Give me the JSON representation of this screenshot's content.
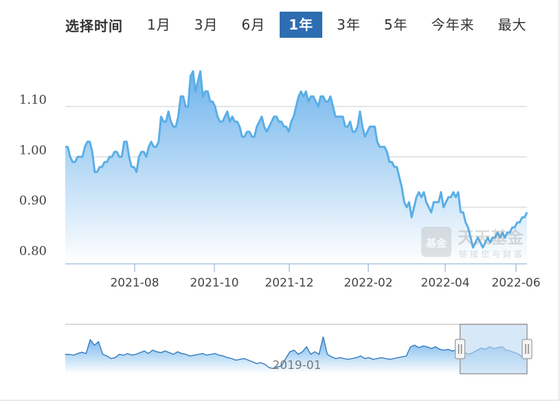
{
  "range_selector": {
    "title": "选择时间",
    "options": [
      "1月",
      "3月",
      "6月",
      "1年",
      "3年",
      "5年",
      "今年来",
      "最大"
    ],
    "active_index": 3
  },
  "watermark": {
    "logo_text": "基金",
    "name": "天天基金",
    "slogan": "链接您与财富"
  },
  "colors": {
    "line": "#5aaee6",
    "fill_top": "#7bbcef",
    "fill_bottom": "#ffffff",
    "active_tab": "#2e6db1",
    "grid": "#d9dde3"
  },
  "chart_data": {
    "type": "area",
    "title": "",
    "xlabel": "",
    "ylabel": "",
    "ylim": [
      0.78,
      1.19
    ],
    "yticks": [
      "0.80",
      "0.90",
      "1.00",
      "1.10"
    ],
    "xticks": [
      "2021-08",
      "2021-10",
      "2021-12",
      "2022-02",
      "2022-04",
      "2022-06"
    ],
    "grid": true,
    "series": [
      {
        "values": [
          1.02,
          1.02,
          1.0,
          0.99,
          0.99,
          1.0,
          1.0,
          1.0,
          1.02,
          1.03,
          1.03,
          1.01,
          0.97,
          0.97,
          0.98,
          0.98,
          0.99,
          0.99,
          1.0,
          1.0,
          1.01,
          1.01,
          1.0,
          1.0,
          1.03,
          1.03,
          1.0,
          0.98,
          0.98,
          0.97,
          1.0,
          1.01,
          1.01,
          1.0,
          1.02,
          1.03,
          1.02,
          1.02,
          1.03,
          1.08,
          1.07,
          1.07,
          1.09,
          1.07,
          1.06,
          1.06,
          1.08,
          1.12,
          1.12,
          1.1,
          1.1,
          1.16,
          1.17,
          1.13,
          1.15,
          1.17,
          1.12,
          1.13,
          1.13,
          1.11,
          1.11,
          1.1,
          1.08,
          1.07,
          1.07,
          1.08,
          1.09,
          1.07,
          1.08,
          1.07,
          1.07,
          1.06,
          1.04,
          1.04,
          1.05,
          1.05,
          1.04,
          1.04,
          1.06,
          1.07,
          1.08,
          1.06,
          1.05,
          1.06,
          1.07,
          1.08,
          1.08,
          1.07,
          1.07,
          1.06,
          1.06,
          1.05,
          1.07,
          1.08,
          1.1,
          1.12,
          1.13,
          1.12,
          1.13,
          1.11,
          1.12,
          1.12,
          1.11,
          1.1,
          1.12,
          1.12,
          1.11,
          1.11,
          1.12,
          1.1,
          1.08,
          1.08,
          1.08,
          1.08,
          1.06,
          1.06,
          1.07,
          1.05,
          1.05,
          1.06,
          1.09,
          1.06,
          1.04,
          1.05,
          1.06,
          1.06,
          1.06,
          1.03,
          1.02,
          1.02,
          1.02,
          1.01,
          0.99,
          0.99,
          0.98,
          0.98,
          0.96,
          0.94,
          0.91,
          0.9,
          0.91,
          0.88,
          0.9,
          0.92,
          0.93,
          0.92,
          0.93,
          0.91,
          0.9,
          0.89,
          0.91,
          0.91,
          0.91,
          0.93,
          0.9,
          0.91,
          0.92,
          0.92,
          0.93,
          0.92,
          0.93,
          0.89,
          0.89,
          0.87,
          0.86,
          0.84,
          0.82,
          0.83,
          0.84,
          0.83,
          0.82,
          0.83,
          0.84,
          0.83,
          0.84,
          0.84,
          0.85,
          0.84,
          0.85,
          0.84,
          0.85,
          0.85,
          0.86,
          0.86,
          0.87,
          0.87,
          0.88,
          0.88,
          0.89
        ]
      }
    ],
    "navigator": {
      "label": "2019-01",
      "values": [
        0.4,
        0.4,
        0.38,
        0.42,
        0.45,
        0.42,
        0.75,
        0.62,
        0.7,
        0.4,
        0.36,
        0.3,
        0.32,
        0.4,
        0.38,
        0.42,
        0.38,
        0.4,
        0.44,
        0.48,
        0.42,
        0.5,
        0.46,
        0.44,
        0.48,
        0.44,
        0.4,
        0.46,
        0.42,
        0.4,
        0.36,
        0.38,
        0.4,
        0.42,
        0.38,
        0.4,
        0.42,
        0.38,
        0.36,
        0.32,
        0.3,
        0.26,
        0.28,
        0.3,
        0.26,
        0.22,
        0.18,
        0.2,
        0.16,
        0.08,
        0.06,
        0.1,
        0.12,
        0.3,
        0.46,
        0.5,
        0.4,
        0.46,
        0.58,
        0.4,
        0.46,
        0.4,
        0.82,
        0.4,
        0.34,
        0.3,
        0.32,
        0.3,
        0.28,
        0.3,
        0.32,
        0.36,
        0.3,
        0.32,
        0.28,
        0.3,
        0.32,
        0.3,
        0.28,
        0.3,
        0.32,
        0.34,
        0.36,
        0.58,
        0.62,
        0.56,
        0.6,
        0.58,
        0.54,
        0.58,
        0.52,
        0.5,
        0.52,
        0.48,
        0.5,
        0.46,
        0.44,
        0.4,
        0.44,
        0.5,
        0.55,
        0.52,
        0.58,
        0.54,
        0.56,
        0.58,
        0.5,
        0.48,
        0.44,
        0.4,
        0.32,
        0.3
      ],
      "selection_fraction": [
        0.855,
        1.0
      ]
    }
  }
}
